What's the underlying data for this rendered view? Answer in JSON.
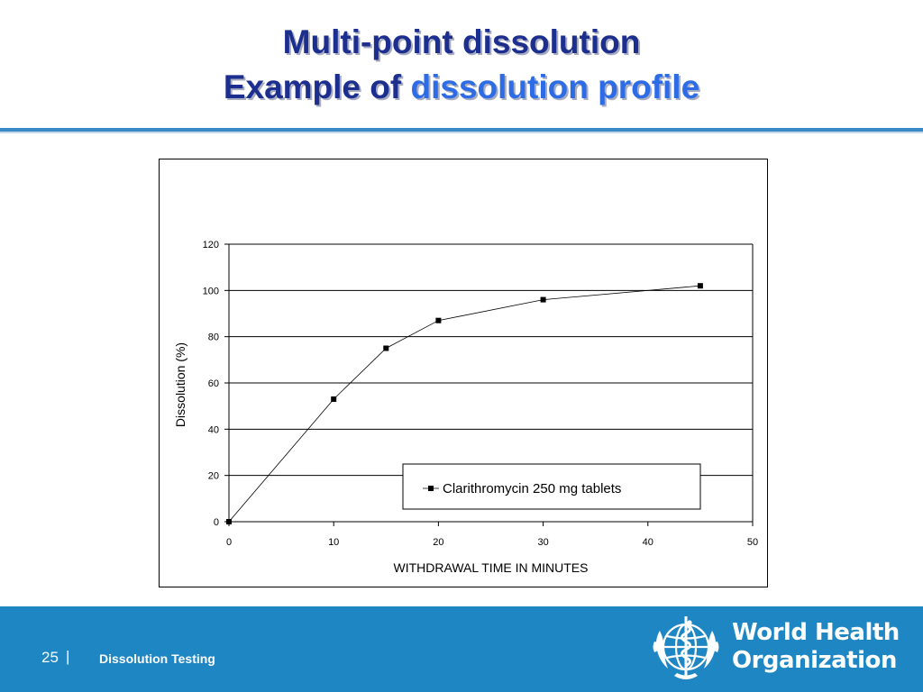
{
  "slide": {
    "title_line1": "Multi-point dissolution",
    "title_line2_prefix": "Example of",
    "title_line2_accent": "dissolution profile"
  },
  "footer": {
    "page_number": "25",
    "separator": "|",
    "section": "Dissolution Testing",
    "org_line1": "World Health",
    "org_line2": "Organization",
    "logo_icon": "who-emblem-icon"
  },
  "colors": {
    "title": "#1c2e8e",
    "title_accent": "#2e6ce6",
    "footer_bg": "#1f86c4",
    "rule": "#3a89c9"
  },
  "chart_data": {
    "type": "line",
    "x": [
      0,
      10,
      15,
      20,
      30,
      45
    ],
    "series": [
      {
        "name": "Clarithromycin 250 mg tablets",
        "values": [
          0,
          53,
          75,
          87,
          96,
          102
        ]
      }
    ],
    "xlabel": "WITHDRAWAL TIME IN MINUTES",
    "ylabel": "Dissolution (%)",
    "xlim": [
      0,
      50
    ],
    "ylim": [
      0,
      120
    ],
    "xticks": [
      0,
      10,
      20,
      30,
      40,
      50
    ],
    "yticks": [
      0,
      20,
      40,
      60,
      80,
      100,
      120
    ],
    "grid": "horizontal",
    "legend_position": "bottom-right"
  }
}
